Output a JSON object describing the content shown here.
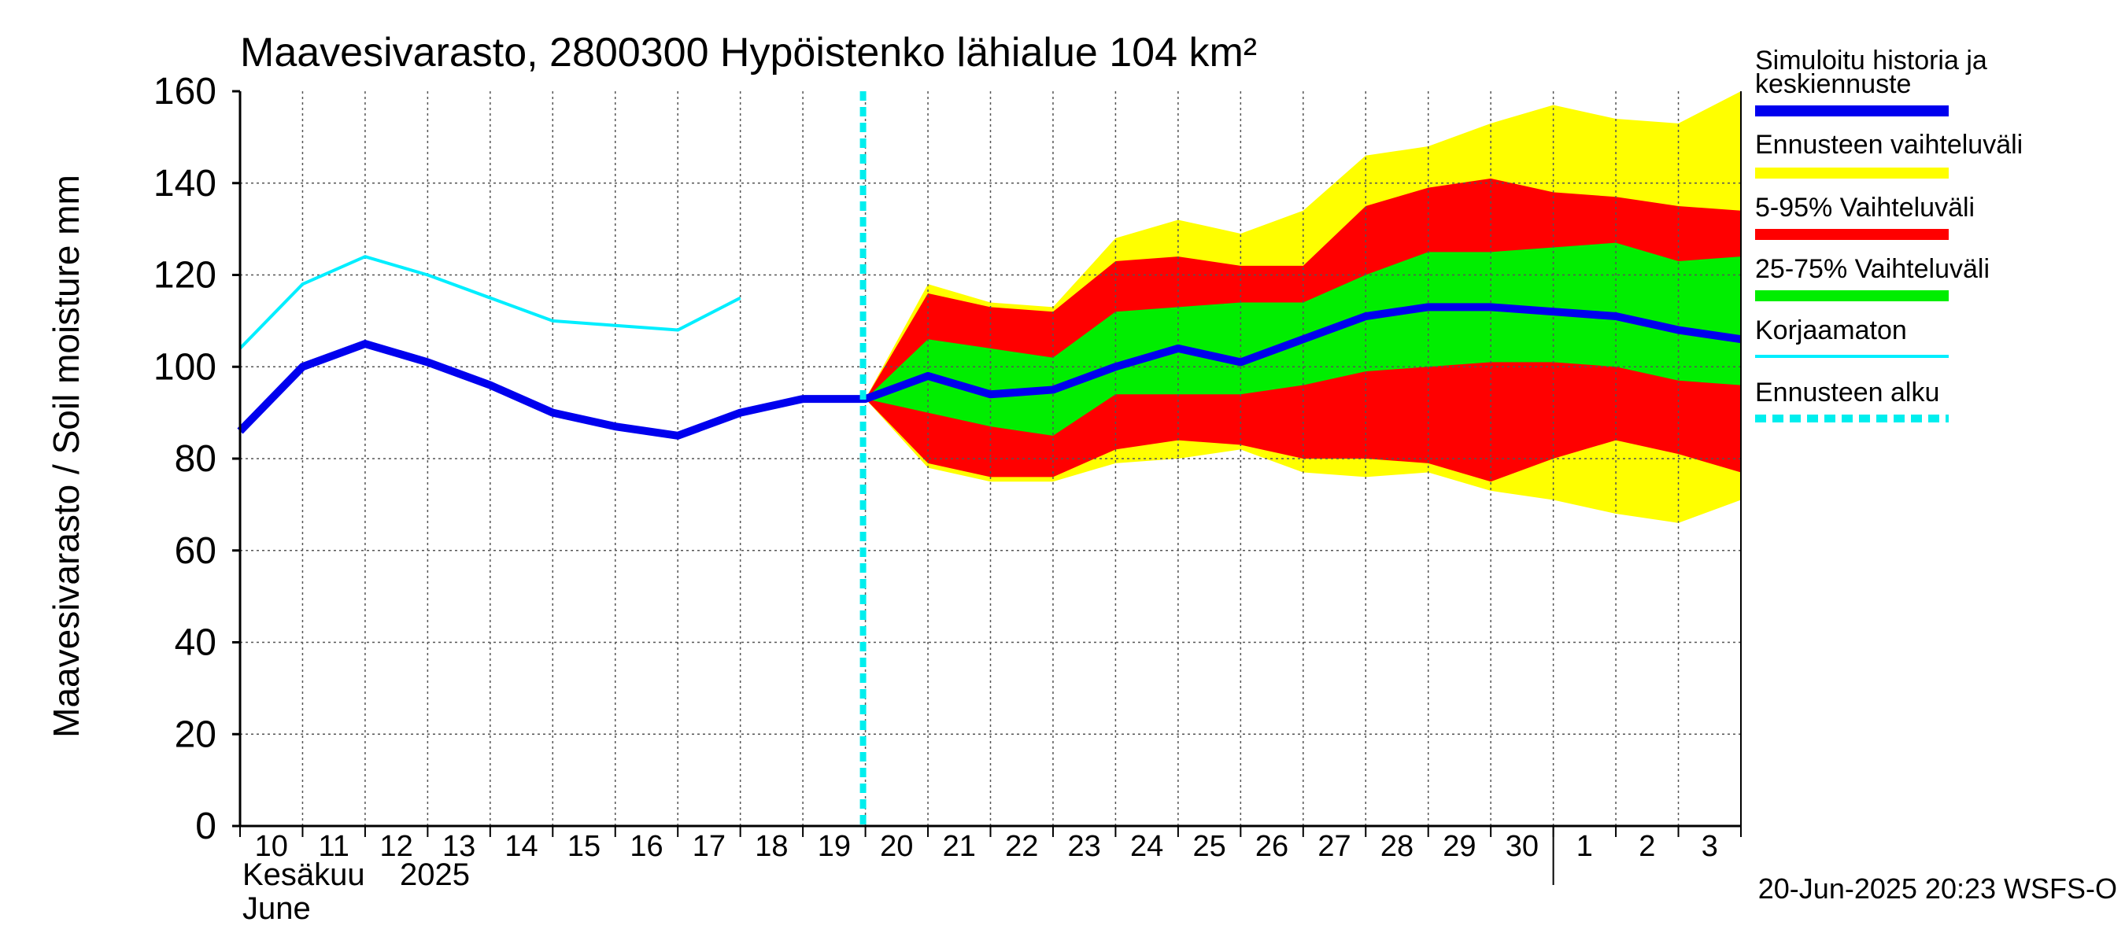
{
  "chart_data": {
    "type": "area",
    "title": "Maavesivarasto, 2800300 Hypöistenko lähialue 104 km²",
    "ylabel": "Maavesivarasto / Soil moisture   mm",
    "ylim": [
      0,
      160
    ],
    "yticks": [
      0,
      20,
      40,
      60,
      80,
      100,
      120,
      140,
      160
    ],
    "xlim": [
      "2025-06-10",
      "2025-07-03"
    ],
    "x_tick_labels": [
      "10",
      "11",
      "12",
      "13",
      "14",
      "15",
      "16",
      "17",
      "18",
      "19",
      "20",
      "21",
      "22",
      "23",
      "24",
      "25",
      "26",
      "27",
      "28",
      "29",
      "30",
      "1",
      "2",
      "3"
    ],
    "month_label_fi": "Kesäkuu",
    "year_label": "2025",
    "month_label_en": "June",
    "grid": true,
    "legend_position": "right",
    "forecast_start": "2025-06-20",
    "x": [
      "2025-06-10",
      "2025-06-11",
      "2025-06-12",
      "2025-06-13",
      "2025-06-14",
      "2025-06-15",
      "2025-06-16",
      "2025-06-17",
      "2025-06-18",
      "2025-06-19",
      "2025-06-20",
      "2025-06-21",
      "2025-06-22",
      "2025-06-23",
      "2025-06-24",
      "2025-06-25",
      "2025-06-26",
      "2025-06-27",
      "2025-06-28",
      "2025-06-29",
      "2025-06-30",
      "2025-07-01",
      "2025-07-02",
      "2025-07-03",
      "2025-07-04"
    ],
    "series": [
      {
        "name": "Ennusteen vaihteluväli",
        "kind": "band",
        "color": "#ffff00",
        "x": [
          "2025-06-20",
          "2025-06-21",
          "2025-06-22",
          "2025-06-23",
          "2025-06-24",
          "2025-06-25",
          "2025-06-26",
          "2025-06-27",
          "2025-06-28",
          "2025-06-29",
          "2025-06-30",
          "2025-07-01",
          "2025-07-02",
          "2025-07-03",
          "2025-07-04"
        ],
        "upper": [
          93,
          118,
          114,
          113,
          128,
          132,
          129,
          134,
          146,
          148,
          153,
          157,
          154,
          153,
          160
        ],
        "lower": [
          93,
          78,
          75,
          75,
          79,
          80,
          82,
          77,
          76,
          77,
          73,
          71,
          68,
          66,
          71
        ]
      },
      {
        "name": "5-95% Vaihteluväli",
        "kind": "band",
        "color": "#ff0000",
        "x": [
          "2025-06-20",
          "2025-06-21",
          "2025-06-22",
          "2025-06-23",
          "2025-06-24",
          "2025-06-25",
          "2025-06-26",
          "2025-06-27",
          "2025-06-28",
          "2025-06-29",
          "2025-06-30",
          "2025-07-01",
          "2025-07-02",
          "2025-07-03",
          "2025-07-04"
        ],
        "upper": [
          93,
          116,
          113,
          112,
          123,
          124,
          122,
          122,
          135,
          139,
          141,
          138,
          137,
          135,
          134
        ],
        "lower": [
          93,
          79,
          76,
          76,
          82,
          84,
          83,
          80,
          80,
          79,
          75,
          80,
          84,
          81,
          77
        ]
      },
      {
        "name": "25-75% Vaihteluväli",
        "kind": "band",
        "color": "#00ee00",
        "x": [
          "2025-06-20",
          "2025-06-21",
          "2025-06-22",
          "2025-06-23",
          "2025-06-24",
          "2025-06-25",
          "2025-06-26",
          "2025-06-27",
          "2025-06-28",
          "2025-06-29",
          "2025-06-30",
          "2025-07-01",
          "2025-07-02",
          "2025-07-03",
          "2025-07-04"
        ],
        "upper": [
          93,
          106,
          104,
          102,
          112,
          113,
          114,
          114,
          120,
          125,
          125,
          126,
          127,
          123,
          124
        ],
        "lower": [
          93,
          90,
          87,
          85,
          94,
          94,
          94,
          96,
          99,
          100,
          101,
          101,
          100,
          97,
          96
        ]
      },
      {
        "name": "Korjaamaton",
        "kind": "line",
        "color": "#00eeff",
        "width": 4,
        "x": [
          "2025-06-10",
          "2025-06-11",
          "2025-06-12",
          "2025-06-13",
          "2025-06-14",
          "2025-06-15",
          "2025-06-16",
          "2025-06-17",
          "2025-06-18"
        ],
        "values": [
          104,
          118,
          124,
          120,
          115,
          110,
          109,
          108,
          115
        ]
      },
      {
        "name": "Simuloitu historia ja keskiennuste",
        "kind": "line",
        "color": "#0000ee",
        "width": 10,
        "x": [
          "2025-06-10",
          "2025-06-11",
          "2025-06-12",
          "2025-06-13",
          "2025-06-14",
          "2025-06-15",
          "2025-06-16",
          "2025-06-17",
          "2025-06-18",
          "2025-06-19",
          "2025-06-20",
          "2025-06-21",
          "2025-06-22",
          "2025-06-23",
          "2025-06-24",
          "2025-06-25",
          "2025-06-26",
          "2025-06-27",
          "2025-06-28",
          "2025-06-29",
          "2025-06-30",
          "2025-07-01",
          "2025-07-02",
          "2025-07-03",
          "2025-07-04"
        ],
        "values": [
          86,
          100,
          105,
          101,
          96,
          90,
          87,
          85,
          90,
          93,
          93,
          98,
          94,
          95,
          100,
          104,
          101,
          106,
          111,
          113,
          113,
          112,
          111,
          108,
          106
        ]
      }
    ],
    "legend": [
      {
        "label": "Simuloitu historia ja",
        "label2": "keskiennuste",
        "color": "#0000ee",
        "style": "thick"
      },
      {
        "label": "Ennusteen vaihteluväli",
        "color": "#ffff00",
        "style": "band"
      },
      {
        "label": "5-95% Vaihteluväli",
        "color": "#ff0000",
        "style": "band"
      },
      {
        "label": "25-75% Vaihteluväli",
        "color": "#00ee00",
        "style": "band"
      },
      {
        "label": "Korjaamaton",
        "color": "#00eeff",
        "style": "thin"
      },
      {
        "label": "Ennusteen alku",
        "color": "#00eeee",
        "style": "dashed"
      }
    ],
    "footer": "20-Jun-2025 20:23 WSFS-O"
  }
}
